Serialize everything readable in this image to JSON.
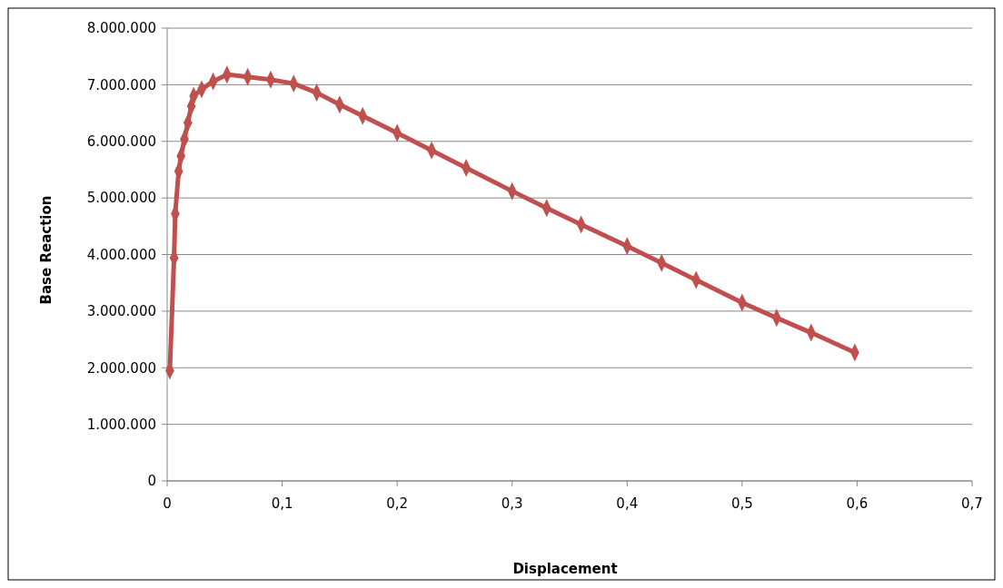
{
  "chart_data": {
    "type": "line",
    "xlabel": "Displacement",
    "ylabel": "Base Reaction",
    "x": [
      0.0023,
      0.006,
      0.007,
      0.01,
      0.012,
      0.015,
      0.018,
      0.021,
      0.023,
      0.03,
      0.04,
      0.052,
      0.07,
      0.09,
      0.11,
      0.13,
      0.15,
      0.17,
      0.2,
      0.23,
      0.26,
      0.3,
      0.33,
      0.36,
      0.4,
      0.43,
      0.46,
      0.5,
      0.53,
      0.56,
      0.598
    ],
    "series": [
      {
        "color": "#c0504d",
        "values": [
          1950000,
          3940000,
          4720000,
          5470000,
          5740000,
          6040000,
          6330000,
          6620000,
          6800000,
          6920000,
          7060000,
          7180000,
          7140000,
          7090000,
          7020000,
          6860000,
          6650000,
          6450000,
          6150000,
          5840000,
          5530000,
          5120000,
          4820000,
          4530000,
          4150000,
          3850000,
          3550000,
          3150000,
          2880000,
          2620000,
          2270000
        ]
      }
    ],
    "xlim": [
      0,
      0.7
    ],
    "xticks": [
      0,
      {
        "value": 0.1,
        "label": "0,1"
      },
      {
        "value": 0.2,
        "label": "0,2"
      },
      {
        "value": 0.3,
        "label": "0,3"
      },
      {
        "value": 0.4,
        "label": "0,4"
      },
      {
        "value": 0.5,
        "label": "0,5"
      },
      {
        "value": 0.6,
        "label": "0,6"
      },
      {
        "value": 0.7,
        "label": "0,7"
      }
    ],
    "ylim": [
      0,
      8000000
    ],
    "yticks": [
      0,
      {
        "value": 1000000,
        "label": "1.000.000"
      },
      {
        "value": 2000000,
        "label": "2.000.000"
      },
      {
        "value": 3000000,
        "label": "3.000.000"
      },
      {
        "value": 4000000,
        "label": "4.000.000"
      },
      {
        "value": 5000000,
        "label": "5.000.000"
      },
      {
        "value": 6000000,
        "label": "6.000.000"
      },
      {
        "value": 7000000,
        "label": "7.000.000"
      },
      {
        "value": 8000000,
        "label": "8.000.000"
      }
    ],
    "grid": "y",
    "marker": "diamond",
    "line_style": "solid"
  }
}
